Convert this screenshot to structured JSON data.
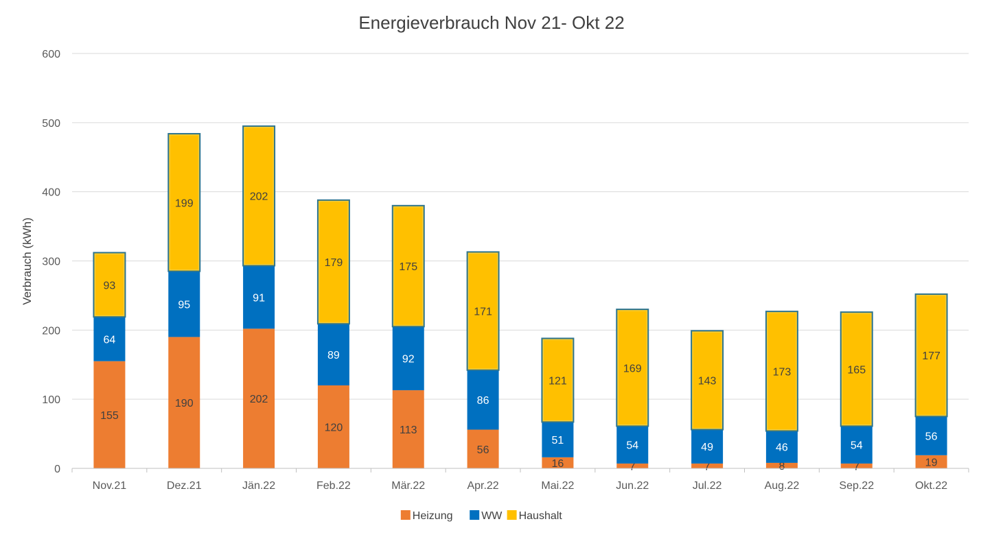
{
  "chart_data": {
    "type": "bar",
    "stacked": true,
    "title": "Energieverbrauch Nov 21- Okt 22",
    "xlabel": "",
    "ylabel": "Verbrauch (kWh)",
    "ylim": [
      0,
      600
    ],
    "yticks": [
      "0",
      "100",
      "200",
      "300",
      "400",
      "500",
      "600"
    ],
    "grid": true,
    "legend_position": "bottom",
    "categories": [
      "Nov.21",
      "Dez.21",
      "Jän.22",
      "Feb.22",
      "Mär.22",
      "Apr.22",
      "Mai.22",
      "Jun.22",
      "Jul.22",
      "Aug.22",
      "Sep.22",
      "Okt.22"
    ],
    "series": [
      {
        "name": "Heizung",
        "color": "#ED7D31",
        "label_color": "#404040",
        "values": [
          155,
          190,
          202,
          120,
          113,
          56,
          16,
          7,
          7,
          8,
          7,
          19
        ]
      },
      {
        "name": "WW",
        "color": "#0070C0",
        "label_color": "#FFFFFF",
        "values": [
          64,
          95,
          91,
          89,
          92,
          86,
          51,
          54,
          49,
          46,
          54,
          56
        ]
      },
      {
        "name": "Haushalt",
        "color": "#FFC000",
        "border_color": "#2E7591",
        "label_color": "#404040",
        "values": [
          93,
          199,
          202,
          179,
          175,
          171,
          121,
          169,
          143,
          173,
          165,
          177
        ]
      }
    ]
  }
}
